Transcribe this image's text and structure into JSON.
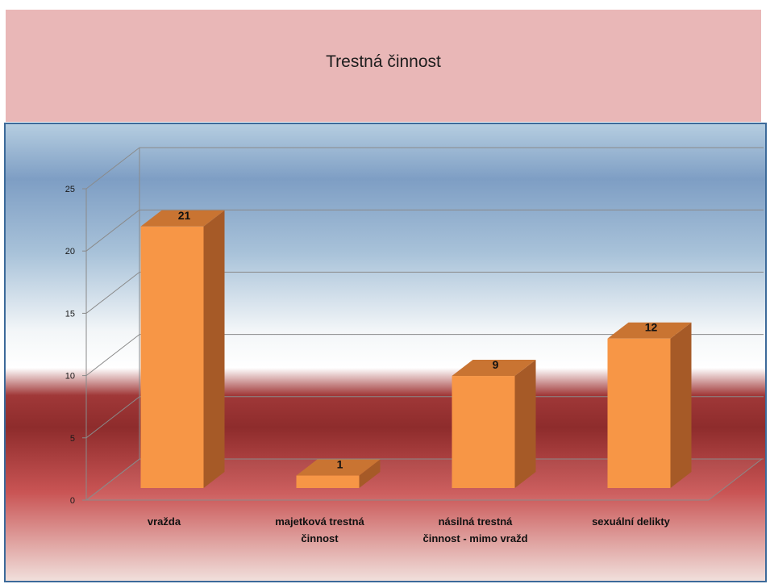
{
  "chart_data": {
    "type": "bar",
    "title": "Trestná činnost",
    "categories": [
      [
        "vražda"
      ],
      [
        "majetková trestná",
        "činnost"
      ],
      [
        "násilná trestná",
        "činnost - mimo vražd"
      ],
      [
        "sexuální delikty"
      ]
    ],
    "values": [
      21,
      1,
      9,
      12
    ],
    "ylim": [
      0,
      25
    ],
    "yticks": [
      0,
      5,
      10,
      15,
      20,
      25
    ],
    "xlabel": "",
    "ylabel": "",
    "grid": true,
    "legend": "none",
    "colors": {
      "bar_front": "#f79646",
      "bar_side": "#a65a27",
      "bar_top": "#c97432",
      "title_banner": "#e9b7b7"
    }
  }
}
